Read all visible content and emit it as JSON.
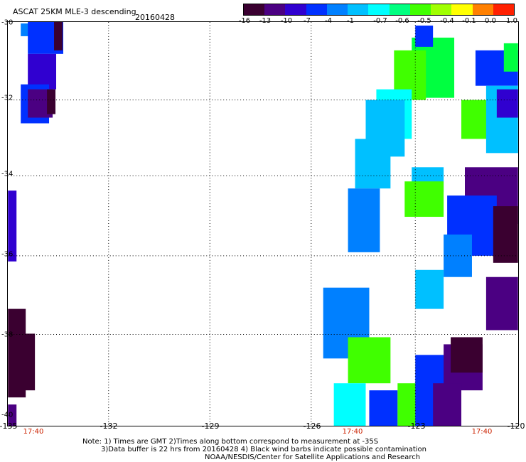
{
  "header": {
    "title": "ASCAT 25KM MLE-3 descending",
    "date": "20160428"
  },
  "colorbar": {
    "colors": [
      "#3a0030",
      "#4b0082",
      "#3000d0",
      "#0030ff",
      "#0080ff",
      "#00c0ff",
      "#00ffff",
      "#00ff80",
      "#40ff00",
      "#a0ff00",
      "#ffff00",
      "#ff8000",
      "#ff2000"
    ],
    "labels": [
      "-16",
      "-13",
      "-10",
      "-7",
      "-4",
      "-1",
      "-0.7",
      "-0.6",
      "-0.5",
      "-0.4",
      "-0.1",
      "0.0",
      "1.0"
    ]
  },
  "axes": {
    "x_ticks": [
      "-135",
      "-132",
      "-129",
      "-126",
      "-123",
      "-120"
    ],
    "y_ticks": [
      "-30",
      "-32",
      "-34",
      "-36",
      "-38",
      "-40"
    ],
    "time_labels": [
      "17:40",
      "17:40",
      "17:40"
    ]
  },
  "notes": {
    "line1": "Note: 1) Times are GMT 2)Times along bottom correspond to measurement at -35S",
    "line2": "3)Data buffer is 22 hrs from 20160428 4) Black wind barbs indicate possible contamination",
    "line3": "NOAA/NESDIS/Center for Satellite Applications and Research"
  },
  "swaths": {
    "colors": {
      "dark_purple": "#3a0030",
      "purple": "#4b0082",
      "violet": "#3000d0",
      "blue": "#0030ff",
      "mid_blue": "#0080ff",
      "light_blue": "#00c0ff",
      "cyan": "#00ffff",
      "green": "#00ff40",
      "bright_green": "#40ff00"
    }
  }
}
